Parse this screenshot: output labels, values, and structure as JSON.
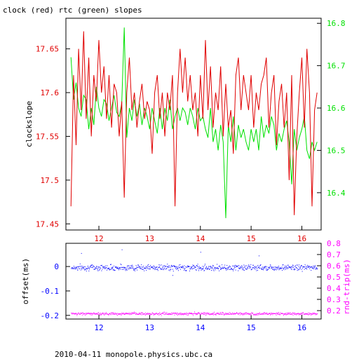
{
  "chart_data": [
    {
      "type": "line",
      "title": "clock (red) rtc (green) slopes",
      "ylabel": "clockslope",
      "xlim": [
        11.35,
        16.38
      ],
      "ylim": [
        17.443,
        17.685
      ],
      "x_ticks": [
        "12",
        "13",
        "14",
        "15",
        "16"
      ],
      "y_ticks": [
        "17.45",
        "17.5",
        "17.55",
        "17.6",
        "17.65"
      ],
      "y2lim": [
        16.312,
        16.812
      ],
      "y2_ticks": [
        "16.4",
        "16.5",
        "16.6",
        "16.7",
        "16.8"
      ],
      "colors": {
        "clock": "#e00000",
        "rtc": "#00e000",
        "axis_left": "#e00000",
        "axis_right": "#00e000",
        "x_ticks": "#e00000"
      },
      "series": [
        {
          "key": "clock",
          "axis": "left",
          "x": [
            11.45,
            11.5,
            11.55,
            11.6,
            11.65,
            11.7,
            11.75,
            11.8,
            11.85,
            11.9,
            11.95,
            12.0,
            12.05,
            12.1,
            12.15,
            12.2,
            12.25,
            12.3,
            12.35,
            12.4,
            12.45,
            12.5,
            12.55,
            12.6,
            12.65,
            12.7,
            12.75,
            12.8,
            12.85,
            12.9,
            12.95,
            13.0,
            13.05,
            13.1,
            13.15,
            13.2,
            13.25,
            13.3,
            13.35,
            13.4,
            13.45,
            13.5,
            13.55,
            13.6,
            13.65,
            13.7,
            13.75,
            13.8,
            13.85,
            13.9,
            13.95,
            14.0,
            14.05,
            14.1,
            14.15,
            14.2,
            14.25,
            14.3,
            14.35,
            14.4,
            14.45,
            14.5,
            14.55,
            14.6,
            14.65,
            14.7,
            14.75,
            14.8,
            14.85,
            14.9,
            14.95,
            15.0,
            15.05,
            15.1,
            15.15,
            15.2,
            15.25,
            15.3,
            15.35,
            15.4,
            15.45,
            15.5,
            15.55,
            15.6,
            15.65,
            15.7,
            15.75,
            15.8,
            15.85,
            15.9,
            15.95,
            16.0,
            16.05,
            16.1,
            16.15,
            16.2,
            16.25,
            16.3
          ],
          "y": [
            17.47,
            17.62,
            17.54,
            17.65,
            17.58,
            17.67,
            17.57,
            17.64,
            17.55,
            17.62,
            17.59,
            17.66,
            17.6,
            17.63,
            17.57,
            17.62,
            17.56,
            17.61,
            17.6,
            17.55,
            17.59,
            17.48,
            17.6,
            17.64,
            17.58,
            17.6,
            17.56,
            17.59,
            17.61,
            17.57,
            17.59,
            17.58,
            17.53,
            17.6,
            17.62,
            17.57,
            17.6,
            17.55,
            17.6,
            17.58,
            17.62,
            17.47,
            17.6,
            17.65,
            17.6,
            17.64,
            17.59,
            17.62,
            17.58,
            17.6,
            17.55,
            17.62,
            17.57,
            17.66,
            17.58,
            17.63,
            17.56,
            17.6,
            17.58,
            17.63,
            17.55,
            17.61,
            17.56,
            17.58,
            17.53,
            17.62,
            17.64,
            17.58,
            17.62,
            17.6,
            17.58,
            17.62,
            17.56,
            17.6,
            17.58,
            17.61,
            17.62,
            17.64,
            17.56,
            17.6,
            17.62,
            17.54,
            17.59,
            17.61,
            17.56,
            17.6,
            17.5,
            17.62,
            17.46,
            17.55,
            17.6,
            17.64,
            17.56,
            17.65,
            17.6,
            17.47,
            17.58,
            17.6
          ]
        },
        {
          "key": "rtc",
          "axis": "right",
          "x": [
            11.45,
            11.5,
            11.55,
            11.6,
            11.65,
            11.7,
            11.75,
            11.8,
            11.85,
            11.9,
            11.95,
            12.0,
            12.05,
            12.1,
            12.15,
            12.2,
            12.25,
            12.3,
            12.35,
            12.4,
            12.45,
            12.5,
            12.55,
            12.6,
            12.65,
            12.7,
            12.75,
            12.8,
            12.85,
            12.9,
            12.95,
            13.0,
            13.05,
            13.1,
            13.15,
            13.2,
            13.25,
            13.3,
            13.35,
            13.4,
            13.45,
            13.5,
            13.55,
            13.6,
            13.65,
            13.7,
            13.75,
            13.8,
            13.85,
            13.9,
            13.95,
            14.0,
            14.05,
            14.1,
            14.15,
            14.2,
            14.25,
            14.3,
            14.35,
            14.4,
            14.45,
            14.5,
            14.55,
            14.6,
            14.65,
            14.7,
            14.75,
            14.8,
            14.85,
            14.9,
            14.95,
            15.0,
            15.05,
            15.1,
            15.15,
            15.2,
            15.25,
            15.3,
            15.35,
            15.4,
            15.45,
            15.5,
            15.55,
            15.6,
            15.65,
            15.7,
            15.75,
            15.8,
            15.85,
            15.9,
            15.95,
            16.0,
            16.05,
            16.1,
            16.15,
            16.2,
            16.25,
            16.3
          ],
          "y": [
            16.72,
            16.62,
            16.66,
            16.6,
            16.58,
            16.63,
            16.62,
            16.55,
            16.6,
            16.56,
            16.65,
            16.6,
            16.58,
            16.62,
            16.61,
            16.57,
            16.6,
            16.63,
            16.59,
            16.58,
            16.61,
            16.79,
            16.53,
            16.6,
            16.57,
            16.62,
            16.58,
            16.61,
            16.56,
            16.6,
            16.58,
            16.55,
            16.6,
            16.57,
            16.54,
            16.6,
            16.55,
            16.6,
            16.57,
            16.62,
            16.55,
            16.58,
            16.6,
            16.57,
            16.6,
            16.59,
            16.56,
            16.6,
            16.58,
            16.55,
            16.6,
            16.57,
            16.58,
            16.55,
            16.53,
            16.6,
            16.52,
            16.55,
            16.5,
            16.56,
            16.52,
            16.34,
            16.56,
            16.52,
            16.58,
            16.5,
            16.56,
            16.53,
            16.55,
            16.52,
            16.5,
            16.55,
            16.52,
            16.55,
            16.5,
            16.58,
            16.53,
            16.56,
            16.54,
            16.58,
            16.56,
            16.5,
            16.54,
            16.52,
            16.55,
            16.57,
            16.52,
            16.42,
            16.55,
            16.5,
            16.53,
            16.55,
            16.58,
            16.5,
            16.48,
            16.52,
            16.5,
            16.52
          ]
        }
      ]
    },
    {
      "type": "scatter",
      "xlim": [
        11.35,
        16.38
      ],
      "ylim": [
        -0.215,
        0.095
      ],
      "ylabel": "offset(ms)",
      "y_ticks": [
        "0",
        "-0.1",
        "-0.2"
      ],
      "y2lim": [
        0.125,
        0.8
      ],
      "y2label": "rnd-trip(ms)",
      "y2_ticks": [
        "0.2",
        "0.3",
        "0.4",
        "0.5",
        "0.6",
        "0.7",
        "0.8"
      ],
      "x_ticks": [
        "12",
        "13",
        "14",
        "15",
        "16"
      ],
      "colors": {
        "offset": "#0000ff",
        "rndtrip": "#ff00ff",
        "x_ticks": "#0000ff",
        "axis_left": "#0000ff",
        "axis_right": "#ff00ff"
      },
      "series": [
        {
          "key": "offset",
          "axis": "left",
          "x_range": [
            11.45,
            16.3
          ],
          "center": -0.003,
          "spread": 0.012,
          "outliers": [
            [
              11.65,
              0.055
            ],
            [
              12.45,
              0.07
            ],
            [
              13.45,
              -0.035
            ],
            [
              14.0,
              0.06
            ],
            [
              15.15,
              0.045
            ]
          ]
        },
        {
          "key": "rndtrip",
          "axis": "right",
          "x_range": [
            11.45,
            16.3
          ],
          "center": 0.175,
          "spread": 0.012
        }
      ]
    }
  ],
  "footer": "2010-04-11  monopole.physics.ubc.ca"
}
